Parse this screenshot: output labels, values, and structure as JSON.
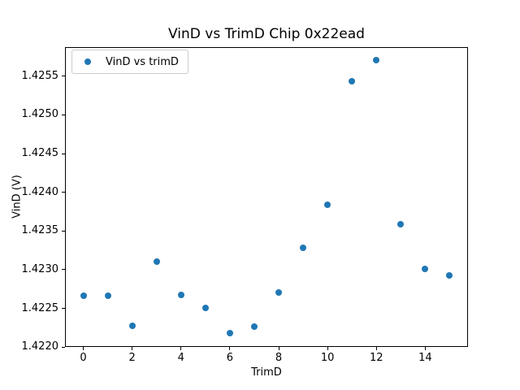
{
  "chart_data": {
    "type": "scatter",
    "title": "VinD vs TrimD Chip 0x22ead",
    "xlabel": "TrimD",
    "ylabel": "VinD (V)",
    "legend": [
      "VinD vs trimD"
    ],
    "legend_position": "upper left",
    "grid": false,
    "marker_color": "#1f77b4",
    "axis_color": "#000000",
    "background_color": "#ffffff",
    "xlim": [
      -0.75,
      15.75
    ],
    "ylim": [
      1.422,
      1.42588
    ],
    "x_ticks": [
      0,
      2,
      4,
      6,
      8,
      10,
      12,
      14
    ],
    "y_ticks": [
      "1.4220",
      "1.4225",
      "1.4230",
      "1.4235",
      "1.4240",
      "1.4245",
      "1.4250",
      "1.4255"
    ],
    "series": [
      {
        "name": "VinD vs trimD",
        "x": [
          0,
          1,
          2,
          3,
          4,
          5,
          6,
          7,
          8,
          9,
          10,
          11,
          12,
          13,
          14,
          15
        ],
        "y": [
          1.42266,
          1.42266,
          1.42227,
          1.4231,
          1.42267,
          1.42251,
          1.42218,
          1.42226,
          1.42271,
          1.42328,
          1.42384,
          1.42543,
          1.42571,
          1.42359,
          1.42301,
          1.42293
        ]
      }
    ]
  }
}
